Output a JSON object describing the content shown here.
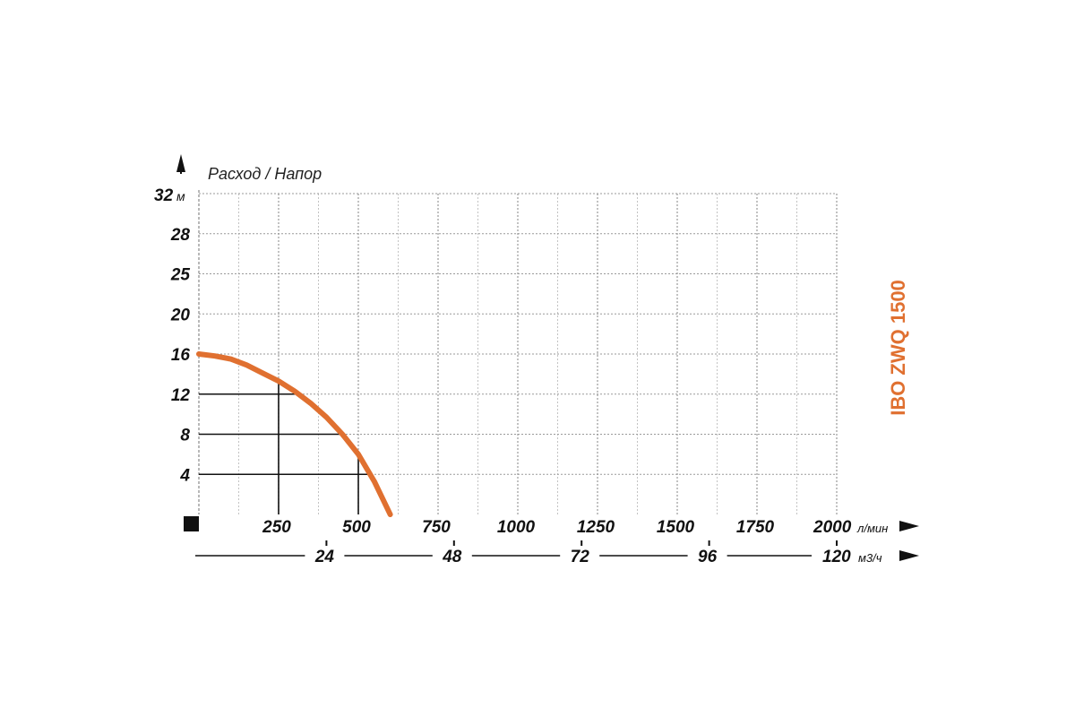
{
  "chart_data": {
    "type": "line",
    "title": "",
    "axis_title": "Расход / Напор",
    "model_label": "IBO ZWQ 1500",
    "y_unit": "м",
    "x_unit": "л/мин",
    "x2_unit": "м3/ч",
    "y_ticks": [
      "4",
      "8",
      "12",
      "16",
      "20",
      "25",
      "28",
      "32"
    ],
    "x_ticks": [
      "250",
      "500",
      "750",
      "1000",
      "1250",
      "1500",
      "1750",
      "2000"
    ],
    "x2_ticks": [
      "24",
      "48",
      "72",
      "96",
      "120"
    ],
    "xlim": [
      0,
      2000
    ],
    "ylim": [
      0,
      32
    ],
    "series": [
      {
        "x": [
          0,
          50,
          100,
          150,
          200,
          250,
          300,
          350,
          400,
          450,
          500,
          550,
          600
        ],
        "y": [
          16,
          15.8,
          15.5,
          14.9,
          14.1,
          13.3,
          12.3,
          11.1,
          9.7,
          8.0,
          6.0,
          3.3,
          0
        ],
        "color": "#e07030"
      }
    ],
    "reference_lines": [
      {
        "x": 250,
        "y": 12
      },
      {
        "x": 500,
        "y": 8
      },
      {
        "x": 500,
        "y": 4
      }
    ],
    "grid": true,
    "colors": {
      "curve": "#e07030",
      "model_label": "#e07030",
      "grid": "#9a9a9a",
      "axis": "#111111"
    }
  }
}
